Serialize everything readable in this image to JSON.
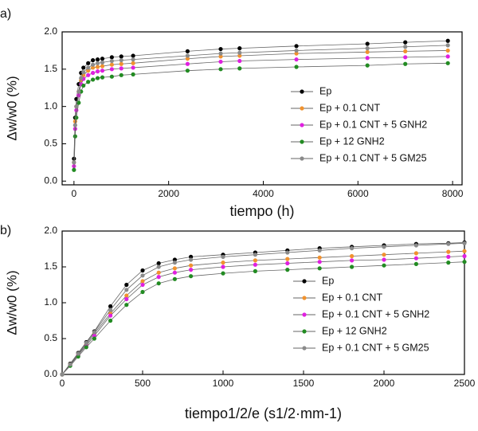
{
  "chart_data": [
    {
      "type": "line",
      "label": "a)",
      "xlabel": "tiempo (h)",
      "ylabel": "Δw/w0 (%)",
      "xlim": [
        -250,
        8200
      ],
      "ylim": [
        -0.05,
        2.0
      ],
      "xticks": [
        0,
        2000,
        4000,
        6000,
        8000
      ],
      "yticks": [
        {
          "value": 0,
          "label": "0.0"
        },
        0.5,
        {
          "value": 1,
          "label": "1.0"
        },
        1.5,
        {
          "value": 2,
          "label": "2.0"
        }
      ],
      "line_color": "#666666",
      "legend": "lower right",
      "x": [
        0,
        25,
        50,
        100,
        150,
        200,
        300,
        400,
        500,
        600,
        800,
        1000,
        1250,
        2400,
        3100,
        3500,
        4700,
        6200,
        7000,
        7900
      ],
      "series": [
        {
          "name": "Ep",
          "color": "#000000",
          "values": [
            0.3,
            0.85,
            1.1,
            1.3,
            1.45,
            1.52,
            1.58,
            1.62,
            1.63,
            1.64,
            1.66,
            1.67,
            1.68,
            1.74,
            1.77,
            1.78,
            1.81,
            1.84,
            1.86,
            1.88
          ]
        },
        {
          "name": "Ep + 0.1 CNT",
          "color": "#f0922f",
          "values": [
            0.25,
            0.8,
            1.0,
            1.2,
            1.35,
            1.42,
            1.48,
            1.52,
            1.53,
            1.54,
            1.56,
            1.57,
            1.58,
            1.64,
            1.67,
            1.68,
            1.71,
            1.73,
            1.74,
            1.75
          ]
        },
        {
          "name": "Ep + 0.1 CNT + 5 GNH2",
          "color": "#e020e0",
          "values": [
            0.2,
            0.7,
            0.95,
            1.15,
            1.3,
            1.37,
            1.42,
            1.45,
            1.47,
            1.48,
            1.5,
            1.51,
            1.52,
            1.57,
            1.6,
            1.61,
            1.63,
            1.65,
            1.66,
            1.67
          ]
        },
        {
          "name": "Ep + 12 GNH2",
          "color": "#228b22",
          "values": [
            0.15,
            0.6,
            0.85,
            1.05,
            1.2,
            1.28,
            1.33,
            1.36,
            1.38,
            1.39,
            1.4,
            1.42,
            1.43,
            1.48,
            1.5,
            1.51,
            1.53,
            1.55,
            1.57,
            1.58
          ]
        },
        {
          "name": "Ep + 0.1 CNT + 5 GM25",
          "color": "#8a8a8a",
          "values": [
            0.25,
            0.75,
            1.0,
            1.2,
            1.38,
            1.46,
            1.52,
            1.56,
            1.58,
            1.59,
            1.61,
            1.62,
            1.63,
            1.68,
            1.71,
            1.72,
            1.75,
            1.78,
            1.8,
            1.82
          ]
        }
      ]
    },
    {
      "type": "line",
      "label": "b)",
      "xlabel": "tiempo1/2/e (s1/2·mm-1)",
      "ylabel": "Δw/w0 (%)",
      "xlim": [
        0,
        2500
      ],
      "ylim": [
        0,
        2.0
      ],
      "xticks": [
        0,
        500,
        1000,
        1500,
        2000,
        2500
      ],
      "yticks": [
        {
          "value": 0,
          "label": "0.0"
        },
        0.5,
        {
          "value": 1,
          "label": "1.0"
        },
        1.5,
        {
          "value": 2,
          "label": "2.0"
        }
      ],
      "line_color": "#666666",
      "legend": "lower right",
      "x": [
        0,
        50,
        100,
        150,
        200,
        300,
        400,
        500,
        600,
        700,
        800,
        1000,
        1200,
        1400,
        1600,
        1800,
        2000,
        2200,
        2400,
        2500
      ],
      "series": [
        {
          "name": "Ep",
          "color": "#000000",
          "values": [
            0,
            0.15,
            0.3,
            0.45,
            0.6,
            0.95,
            1.25,
            1.45,
            1.55,
            1.6,
            1.64,
            1.67,
            1.7,
            1.73,
            1.76,
            1.78,
            1.8,
            1.82,
            1.83,
            1.84
          ]
        },
        {
          "name": "Ep + 0.1 CNT",
          "color": "#f0922f",
          "values": [
            0,
            0.14,
            0.28,
            0.42,
            0.57,
            0.85,
            1.1,
            1.3,
            1.42,
            1.48,
            1.52,
            1.56,
            1.59,
            1.61,
            1.63,
            1.65,
            1.67,
            1.69,
            1.71,
            1.72
          ]
        },
        {
          "name": "Ep + 0.1 CNT + 5 GNH2",
          "color": "#e020e0",
          "values": [
            0,
            0.13,
            0.27,
            0.4,
            0.54,
            0.82,
            1.05,
            1.25,
            1.36,
            1.42,
            1.46,
            1.5,
            1.53,
            1.55,
            1.57,
            1.59,
            1.6,
            1.62,
            1.64,
            1.65
          ]
        },
        {
          "name": "Ep + 12 GNH2",
          "color": "#228b22",
          "values": [
            0,
            0.12,
            0.25,
            0.38,
            0.5,
            0.75,
            0.97,
            1.15,
            1.27,
            1.33,
            1.37,
            1.41,
            1.44,
            1.46,
            1.48,
            1.5,
            1.52,
            1.54,
            1.56,
            1.57
          ]
        },
        {
          "name": "Ep + 0.1 CNT + 5 GM25",
          "color": "#8a8a8a",
          "values": [
            0,
            0.14,
            0.29,
            0.44,
            0.59,
            0.9,
            1.18,
            1.38,
            1.5,
            1.56,
            1.6,
            1.64,
            1.67,
            1.7,
            1.73,
            1.76,
            1.78,
            1.8,
            1.82,
            1.83
          ]
        }
      ]
    }
  ]
}
